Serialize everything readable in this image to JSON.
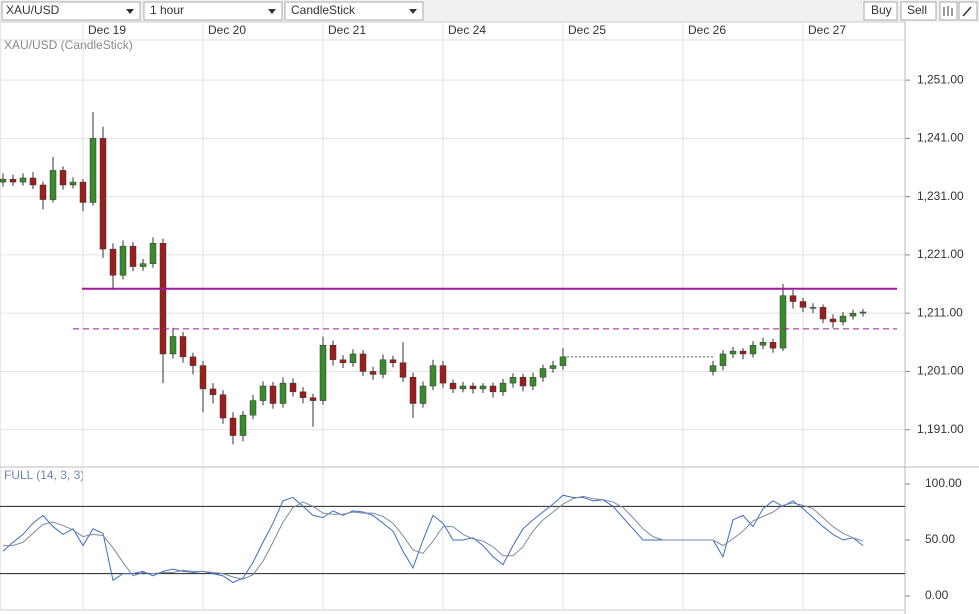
{
  "toolbar": {
    "symbol": "XAU/USD",
    "interval": "1 hour",
    "chart_type": "CandleStick",
    "buy": "Buy",
    "sell": "Sell"
  },
  "chart_data": [
    {
      "type": "candlestick",
      "title": "XAU/USD (CandleStick)",
      "categories": [
        null,
        null,
        null,
        null,
        null,
        null,
        null,
        null,
        "Dec 19",
        null,
        null,
        null,
        null,
        null,
        null,
        null,
        null,
        null,
        null,
        null,
        "Dec 20",
        null,
        null,
        null,
        null,
        null,
        null,
        null,
        null,
        null,
        null,
        null,
        "Dec 21",
        null,
        null,
        null,
        null,
        null,
        null,
        null,
        null,
        null,
        null,
        null,
        "Dec 24",
        null,
        null,
        null,
        null,
        null,
        null,
        null,
        null,
        null,
        null,
        null,
        "Dec 25",
        null,
        null,
        null,
        null,
        null,
        null,
        null,
        null,
        null,
        null,
        null,
        "Dec 26",
        null,
        null,
        null,
        null,
        null,
        null,
        null,
        null,
        null,
        null,
        null,
        "Dec 27",
        null,
        null,
        null,
        null,
        null,
        null
      ],
      "open": [
        1233.5,
        1234.0,
        1233.5,
        1234.2,
        1233.0,
        1230.5,
        1235.5,
        1233.0,
        1233.5,
        1230.0,
        1241.0,
        1222.0,
        1217.5,
        1222.5,
        1219.0,
        1219.5,
        1223.0,
        1204.0,
        1207.0,
        1203.5,
        1202.0,
        1198.0,
        1197.0,
        1193.0,
        1190.0,
        1193.5,
        1196.0,
        1198.5,
        1195.5,
        1199.0,
        1197.5,
        1196.5,
        1196.0,
        1205.5,
        1203.0,
        1202.5,
        1204.0,
        1201.0,
        1200.5,
        1203.0,
        1202.5,
        1200.0,
        1195.5,
        1198.5,
        1202.0,
        1199.0,
        1198.0,
        1198.5,
        1198.0,
        1198.5,
        1197.5,
        1199.0,
        1200.0,
        1198.5,
        1200.0,
        1201.5,
        1202.0,
        null,
        null,
        null,
        null,
        null,
        null,
        null,
        null,
        null,
        null,
        null,
        null,
        null,
        null,
        1201.0,
        1202.0,
        1204.0,
        1204.5,
        1204.0,
        1205.5,
        1206.0,
        1205.0,
        1214.0,
        1213.0,
        1212.0,
        1212.0,
        1210.0,
        1209.5,
        1210.5,
        1211.0
      ],
      "high": [
        1235.0,
        1234.8,
        1235.0,
        1235.2,
        1233.6,
        1237.8,
        1236.2,
        1234.3,
        1234.0,
        1245.5,
        1243.0,
        1223.0,
        1223.5,
        1223.2,
        1220.3,
        1224.0,
        1223.8,
        1208.5,
        1207.8,
        1204.2,
        1202.8,
        1199.0,
        1197.8,
        1194.0,
        1194.2,
        1197.0,
        1199.3,
        1199.2,
        1200.0,
        1199.8,
        1198.3,
        1197.2,
        1207.0,
        1206.3,
        1203.8,
        1204.8,
        1204.7,
        1201.8,
        1203.9,
        1203.7,
        1206.0,
        1200.8,
        1199.3,
        1203.0,
        1202.8,
        1199.6,
        1199.2,
        1199.1,
        1199.0,
        1199.1,
        1199.7,
        1200.7,
        1200.6,
        1200.8,
        1202.2,
        1202.8,
        1205.0,
        null,
        null,
        null,
        null,
        null,
        null,
        null,
        null,
        null,
        null,
        null,
        null,
        null,
        null,
        1202.8,
        1204.7,
        1205.2,
        1205.0,
        1206.2,
        1206.8,
        1206.6,
        1216.0,
        1215.0,
        1213.6,
        1212.7,
        1212.5,
        1210.8,
        1211.2,
        1211.6,
        1211.7
      ],
      "low": [
        1232.7,
        1232.8,
        1232.9,
        1232.3,
        1228.8,
        1230.0,
        1232.2,
        1232.4,
        1228.5,
        1229.5,
        1220.5,
        1215.0,
        1216.8,
        1218.2,
        1218.3,
        1218.8,
        1199.0,
        1203.2,
        1202.5,
        1200.5,
        1194.0,
        1195.5,
        1192.0,
        1188.5,
        1189.0,
        1192.8,
        1195.2,
        1194.6,
        1194.8,
        1196.7,
        1195.5,
        1191.5,
        1195.3,
        1202.0,
        1201.6,
        1201.8,
        1200.2,
        1199.6,
        1199.8,
        1201.7,
        1199.2,
        1193.0,
        1194.8,
        1197.8,
        1198.2,
        1197.3,
        1197.4,
        1197.2,
        1197.3,
        1196.5,
        1196.8,
        1198.2,
        1197.6,
        1197.8,
        1199.2,
        1200.8,
        1201.3,
        null,
        null,
        null,
        null,
        null,
        null,
        null,
        null,
        null,
        null,
        null,
        null,
        null,
        null,
        1200.3,
        1201.2,
        1203.3,
        1203.1,
        1203.4,
        1204.8,
        1204.2,
        1204.5,
        1211.8,
        1211.2,
        1211.0,
        1209.3,
        1208.5,
        1208.9,
        1209.9,
        1210.4
      ],
      "close": [
        1234.0,
        1233.5,
        1234.2,
        1233.0,
        1230.5,
        1235.5,
        1233.0,
        1233.5,
        1230.0,
        1241.0,
        1222.0,
        1217.5,
        1222.5,
        1219.0,
        1219.5,
        1223.0,
        1204.0,
        1207.0,
        1203.5,
        1202.0,
        1198.0,
        1197.0,
        1193.0,
        1190.0,
        1193.5,
        1196.0,
        1198.5,
        1195.5,
        1199.0,
        1197.5,
        1196.5,
        1196.0,
        1205.5,
        1203.0,
        1202.5,
        1204.0,
        1201.0,
        1200.5,
        1203.0,
        1202.5,
        1200.0,
        1195.5,
        1198.5,
        1202.0,
        1199.0,
        1198.0,
        1198.5,
        1198.0,
        1198.5,
        1197.5,
        1199.0,
        1200.0,
        1198.5,
        1200.0,
        1201.5,
        1202.0,
        1203.5,
        null,
        null,
        null,
        null,
        null,
        null,
        null,
        null,
        null,
        null,
        null,
        null,
        null,
        null,
        1202.0,
        1204.0,
        1204.5,
        1204.0,
        1205.5,
        1206.0,
        1205.0,
        1214.0,
        1213.0,
        1212.0,
        1212.0,
        1210.0,
        1209.5,
        1210.5,
        1211.0,
        1211.2
      ],
      "up_color": "#3b8b2e",
      "down_color": "#9b1e1e",
      "wick_color": "#333333",
      "ylim": [
        1184.6,
        1260.8
      ],
      "yticks": [
        {
          "value": 1251,
          "label": "1,251.00"
        },
        {
          "value": 1241,
          "label": "1,241.00"
        },
        {
          "value": 1231,
          "label": "1,231.00"
        },
        {
          "value": 1221,
          "label": "1,221.00"
        },
        {
          "value": 1211,
          "label": "1,211.00"
        },
        {
          "value": 1201,
          "label": "1,201.00"
        },
        {
          "value": 1191,
          "label": "1,191.00"
        }
      ],
      "levels": [
        {
          "value": 1215.2,
          "style": "solid",
          "color": "#a0189a"
        },
        {
          "value": 1208.3,
          "style": "dashed",
          "color": "#a0189a"
        }
      ],
      "grid": true
    },
    {
      "type": "line",
      "title": "FULL (14, 3, 3)",
      "series": [
        {
          "color": "#3a6fc4",
          "values": [
            40,
            48,
            55,
            65,
            72,
            62,
            55,
            60,
            45,
            60,
            56,
            14,
            20,
            20,
            22,
            18,
            22,
            24,
            22,
            21,
            22,
            20,
            18,
            12,
            16,
            30,
            48,
            65,
            85,
            88,
            80,
            72,
            70,
            76,
            72,
            76,
            75,
            72,
            65,
            58,
            40,
            25,
            50,
            72,
            65,
            50,
            50,
            52,
            45,
            35,
            28,
            45,
            60,
            68,
            75,
            82,
            90,
            88,
            88,
            85,
            86,
            80,
            70,
            60,
            50,
            50,
            50,
            50,
            50,
            50,
            50,
            50,
            35,
            68,
            72,
            62,
            78,
            85,
            80,
            85,
            78,
            70,
            62,
            55,
            50,
            52,
            45
          ]
        },
        {
          "color": "#7a8aa6",
          "values": [
            45,
            45,
            48,
            56,
            64,
            66,
            63,
            59,
            53,
            55,
            54,
            43,
            30,
            18,
            21,
            20,
            21,
            21,
            23,
            22,
            22,
            21,
            20,
            17,
            15,
            19,
            31,
            48,
            66,
            79,
            84,
            80,
            74,
            73,
            73,
            75,
            74,
            74,
            71,
            65,
            54,
            41,
            38,
            49,
            62,
            62,
            55,
            51,
            49,
            44,
            36,
            36,
            44,
            58,
            68,
            75,
            82,
            87,
            89,
            87,
            86,
            84,
            79,
            70,
            60,
            53,
            50,
            50,
            50,
            50,
            50,
            50,
            45,
            51,
            58,
            67,
            71,
            75,
            81,
            83,
            81,
            78,
            70,
            62,
            56,
            52,
            49
          ]
        }
      ],
      "ylim": [
        -12.5,
        115.2
      ],
      "yticks": [
        {
          "value": 100,
          "label": "100.00"
        },
        {
          "value": 50,
          "label": "50.00"
        },
        {
          "value": 0,
          "label": "0.00"
        }
      ],
      "levels": [
        80,
        20
      ]
    }
  ]
}
